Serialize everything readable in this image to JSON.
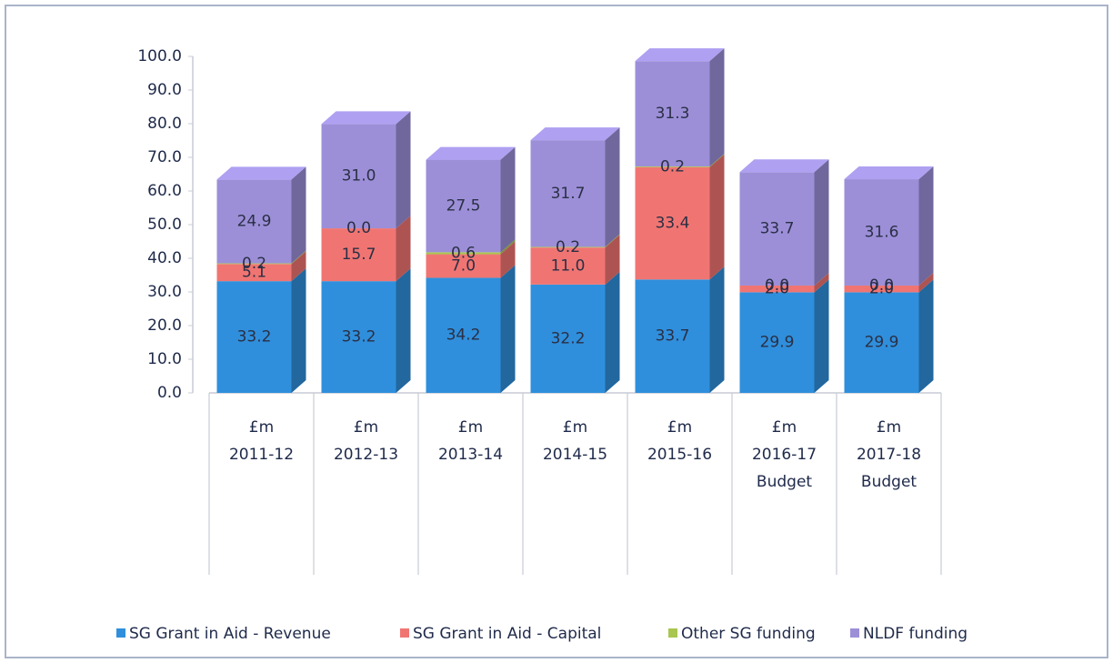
{
  "chart_data": {
    "type": "bar3d_stacked",
    "categories": [
      [
        "£m",
        "2011-12"
      ],
      [
        "£m",
        "2012-13"
      ],
      [
        "£m",
        "2013-14"
      ],
      [
        "£m",
        "2014-15"
      ],
      [
        "£m",
        "2015-16"
      ],
      [
        "£m",
        "2016-17",
        "Budget"
      ],
      [
        "£m",
        "2017-18",
        "Budget"
      ]
    ],
    "series": [
      {
        "name": "SG Grant in Aid - Revenue",
        "color": "#2f8fdc",
        "values": [
          33.2,
          33.2,
          34.2,
          32.2,
          33.7,
          29.9,
          29.9
        ],
        "value_labels": [
          "33.2",
          "33.2",
          "34.2",
          "32.2",
          "33.7",
          "29.9",
          "29.9"
        ]
      },
      {
        "name": "SG Grant in Aid - Capital",
        "color": "#f07572",
        "values": [
          5.1,
          15.7,
          7.0,
          11.0,
          33.4,
          2.0,
          2.0
        ],
        "value_labels": [
          "5.1",
          "15.7",
          "7.0",
          "11.0",
          "33.4",
          "2.0",
          "2.0"
        ]
      },
      {
        "name": "Other SG funding",
        "color": "#a9c650",
        "values": [
          0.2,
          0.0,
          0.6,
          0.2,
          0.2,
          0.0,
          0.0
        ],
        "value_labels": [
          "0.2",
          "0.0",
          "0.6",
          "0.2",
          "0.2",
          "0.0",
          "0.0"
        ]
      },
      {
        "name": "NLDF funding",
        "color": "#9c8fd8",
        "values": [
          24.9,
          31.0,
          27.5,
          31.7,
          31.3,
          33.7,
          31.6
        ],
        "value_labels": [
          "24.9",
          "31.0",
          "27.5",
          "31.7",
          "31.3",
          "33.7",
          "31.6"
        ]
      }
    ],
    "ylim": [
      0,
      100
    ],
    "yticks": [
      {
        "value": 0,
        "label": "0.0"
      },
      {
        "value": 10,
        "label": "10.0"
      },
      {
        "value": 20,
        "label": "20.0"
      },
      {
        "value": 30,
        "label": "30.0"
      },
      {
        "value": 40,
        "label": "40.0"
      },
      {
        "value": 50,
        "label": "50.0"
      },
      {
        "value": 60,
        "label": "60.0"
      },
      {
        "value": 70,
        "label": "70.0"
      },
      {
        "value": 80,
        "label": "80.0"
      },
      {
        "value": 90,
        "label": "90.0"
      },
      {
        "value": 100,
        "label": "100.0"
      }
    ],
    "legend": "bottom"
  }
}
